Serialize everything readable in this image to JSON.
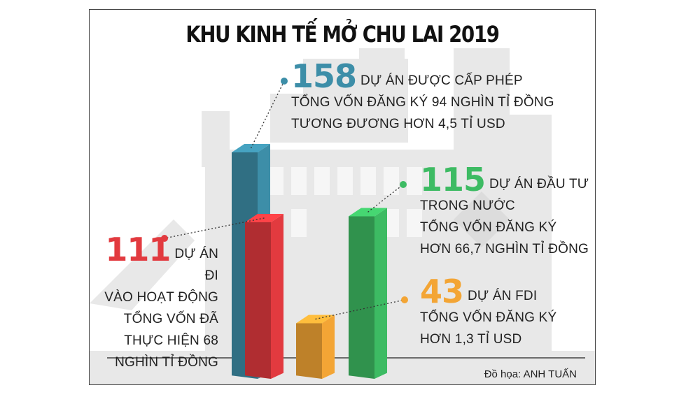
{
  "title": "KHU KINH TẾ MỞ CHU LAI 2019",
  "credit": "Đồ họa: ANH TUẤN",
  "colors": {
    "blue": "#3d8ea8",
    "red": "#e23a3f",
    "orange": "#f3a535",
    "green": "#3dbb63",
    "background_art": "#e8e8e8"
  },
  "chart_data": {
    "type": "bar",
    "style": "3d-bar-infographic",
    "title": "KHU KINH TẾ MỞ CHU LAI 2019",
    "categories": [
      "DỰ ÁN ĐƯỢC CẤP PHÉP",
      "DỰ ÁN ĐI VÀO HOẠT ĐỘNG",
      "DỰ ÁN FDI",
      "DỰ ÁN ĐẦU TƯ TRONG NƯỚC"
    ],
    "values": [
      158,
      111,
      43,
      115
    ],
    "ylim": [
      0,
      158
    ],
    "grid": false,
    "legend": "none",
    "annotations": [
      {
        "value": "158",
        "label": "DỰ ÁN ĐƯỢC CẤP PHÉP",
        "lines": [
          "TỔNG VỐN ĐĂNG KÝ 94 NGHÌN TỈ ĐỒNG",
          "TƯƠNG ĐƯƠNG HƠN 4,5 TỈ USD"
        ]
      },
      {
        "value": "111",
        "label": "DỰ ÁN ĐI",
        "lines": [
          "VÀO HOẠT ĐỘNG",
          "TỔNG VỐN ĐÃ",
          "THỰC HIỆN 68",
          "NGHÌN TỈ ĐỒNG"
        ]
      },
      {
        "value": "115",
        "label": "DỰ ÁN ĐẦU TƯ",
        "lines": [
          "TRONG NƯỚC",
          "TỔNG VỐN ĐĂNG KÝ",
          "HƠN 66,7 NGHÌN TỈ ĐỒNG"
        ]
      },
      {
        "value": "43",
        "label": "DỰ ÁN FDI",
        "lines": [
          "TỔNG VỐN ĐĂNG KÝ",
          "HƠN 1,3 TỈ USD"
        ]
      }
    ]
  }
}
